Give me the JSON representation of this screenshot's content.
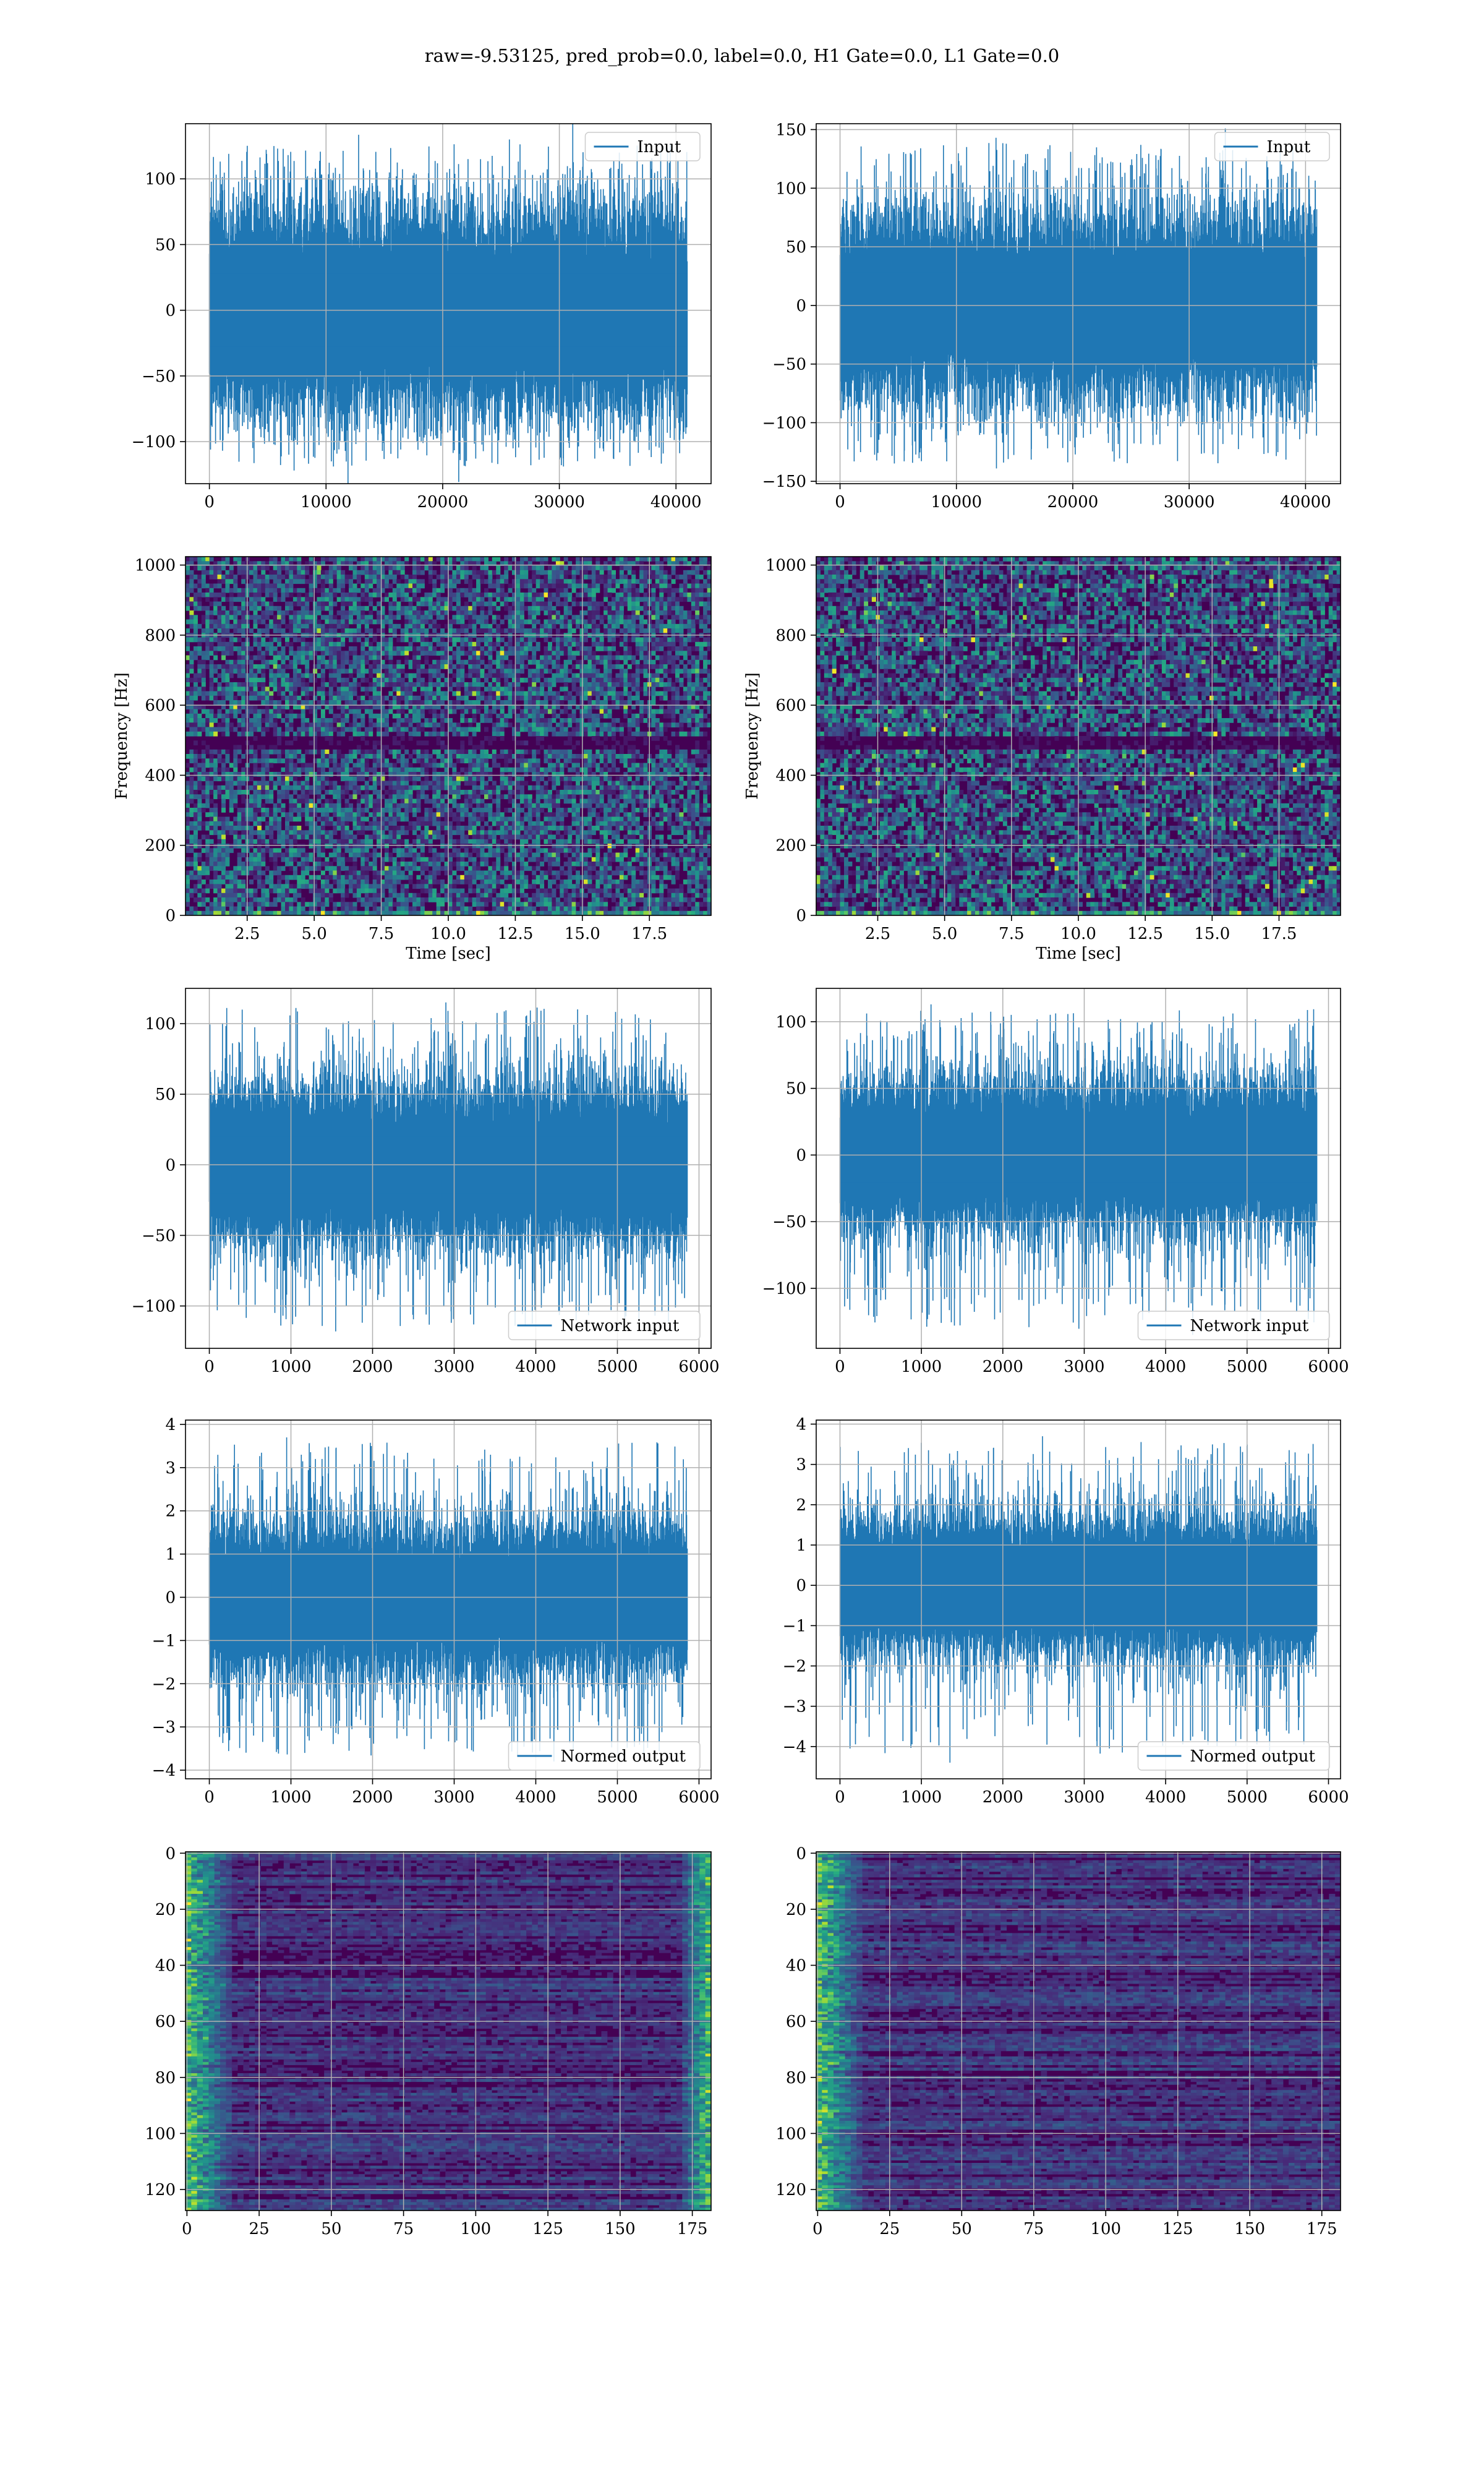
{
  "figure": {
    "suptitle": "raw=-9.53125, pred_prob=0.0, label=0.0, H1 Gate=0.0, L1 Gate=0.0",
    "colors": {
      "line": "#1f77b4",
      "viridis_low": "#440154",
      "viridis_mid": "#21918c",
      "viridis_high": "#fde725",
      "grid": "#b0b0b0"
    }
  },
  "chart_data": [
    {
      "id": "input-h1",
      "type": "line",
      "row": 0,
      "col": 0,
      "series": [
        {
          "name": "Input",
          "envelope": {
            "n": 40960,
            "lo_typ": -62,
            "hi_typ": 62,
            "peak_hi": 130,
            "peak_lo": -122,
            "end_x": 40960
          }
        }
      ],
      "xlim": [
        -2048,
        43008
      ],
      "ylim": [
        -132,
        142
      ],
      "xticks": [
        0,
        10000,
        20000,
        30000,
        40000
      ],
      "yticks": [
        -100,
        -50,
        0,
        50,
        100
      ],
      "legend": "top-right",
      "grid": true,
      "xlabel": "",
      "ylabel": ""
    },
    {
      "id": "input-l1",
      "type": "line",
      "row": 0,
      "col": 1,
      "series": [
        {
          "name": "Input",
          "envelope": {
            "n": 40960,
            "lo_typ": -62,
            "hi_typ": 62,
            "peak_hi": 143,
            "peak_lo": -139,
            "end_x": 40960
          }
        }
      ],
      "xlim": [
        -2048,
        43008
      ],
      "ylim": [
        -152,
        155
      ],
      "xticks": [
        0,
        10000,
        20000,
        30000,
        40000
      ],
      "yticks": [
        -150,
        -100,
        -50,
        0,
        50,
        100,
        150
      ],
      "legend": "top-right",
      "grid": true,
      "xlabel": "",
      "ylabel": ""
    },
    {
      "id": "spec-h1",
      "type": "heatmap",
      "row": 1,
      "col": 0,
      "xlim": [
        0.2,
        19.8
      ],
      "ylim": [
        0,
        1024
      ],
      "xticks": [
        2.5,
        5.0,
        7.5,
        10.0,
        12.5,
        15.0,
        17.5
      ],
      "xtick_labels": [
        "2.5",
        "5.0",
        "7.5",
        "10.0",
        "12.5",
        "15.0",
        "17.5"
      ],
      "yticks": [
        0,
        200,
        400,
        600,
        800,
        1000
      ],
      "xlabel": "Time [sec]",
      "ylabel": "Frequency [Hz]",
      "colormap": "viridis",
      "dark_band_hz": 500,
      "grid": true
    },
    {
      "id": "spec-l1",
      "type": "heatmap",
      "row": 1,
      "col": 1,
      "xlim": [
        0.2,
        19.8
      ],
      "ylim": [
        0,
        1024
      ],
      "xticks": [
        2.5,
        5.0,
        7.5,
        10.0,
        12.5,
        15.0,
        17.5
      ],
      "xtick_labels": [
        "2.5",
        "5.0",
        "7.5",
        "10.0",
        "12.5",
        "15.0",
        "17.5"
      ],
      "yticks": [
        0,
        200,
        400,
        600,
        800,
        1000
      ],
      "xlabel": "Time [sec]",
      "ylabel": "Frequency [Hz]",
      "colormap": "viridis",
      "dark_band_hz": 500,
      "grid": true
    },
    {
      "id": "netin-h1",
      "type": "line",
      "row": 2,
      "col": 0,
      "series": [
        {
          "name": "Network input",
          "envelope": {
            "n": 5856,
            "lo_typ": -45,
            "hi_typ": 45,
            "peak_hi": 115,
            "peak_lo": -118,
            "end_x": 5856
          }
        }
      ],
      "xlim": [
        -292,
        6148
      ],
      "ylim": [
        -130,
        125
      ],
      "xticks": [
        0,
        1000,
        2000,
        3000,
        4000,
        5000,
        6000
      ],
      "yticks": [
        -100,
        -50,
        0,
        50,
        100
      ],
      "legend": "bottom-right",
      "grid": true,
      "xlabel": "",
      "ylabel": ""
    },
    {
      "id": "netin-l1",
      "type": "line",
      "row": 2,
      "col": 1,
      "series": [
        {
          "name": "Network input",
          "envelope": {
            "n": 5856,
            "lo_typ": -45,
            "hi_typ": 45,
            "peak_hi": 113,
            "peak_lo": -135,
            "end_x": 5856
          }
        }
      ],
      "xlim": [
        -292,
        6148
      ],
      "ylim": [
        -145,
        125
      ],
      "xticks": [
        0,
        1000,
        2000,
        3000,
        4000,
        5000,
        6000
      ],
      "yticks": [
        -100,
        -50,
        0,
        50,
        100
      ],
      "legend": "bottom-right",
      "grid": true,
      "xlabel": "",
      "ylabel": ""
    },
    {
      "id": "normed-h1",
      "type": "line",
      "row": 3,
      "col": 0,
      "series": [
        {
          "name": "Normed output",
          "envelope": {
            "n": 5856,
            "lo_typ": -1.4,
            "hi_typ": 1.4,
            "peak_hi": 3.7,
            "peak_lo": -3.8,
            "end_x": 5856
          }
        }
      ],
      "xlim": [
        -292,
        6148
      ],
      "ylim": [
        -4.2,
        4.1
      ],
      "xticks": [
        0,
        1000,
        2000,
        3000,
        4000,
        5000,
        6000
      ],
      "yticks": [
        -4,
        -3,
        -2,
        -1,
        0,
        1,
        2,
        3,
        4
      ],
      "legend": "bottom-right",
      "grid": true,
      "xlabel": "",
      "ylabel": ""
    },
    {
      "id": "normed-l1",
      "type": "line",
      "row": 3,
      "col": 1,
      "series": [
        {
          "name": "Normed output",
          "envelope": {
            "n": 5856,
            "lo_typ": -1.4,
            "hi_typ": 1.4,
            "peak_hi": 3.7,
            "peak_lo": -4.4,
            "end_x": 5856
          }
        }
      ],
      "xlim": [
        -292,
        6148
      ],
      "ylim": [
        -4.8,
        4.1
      ],
      "xticks": [
        0,
        1000,
        2000,
        3000,
        4000,
        5000,
        6000
      ],
      "yticks": [
        -4,
        -3,
        -2,
        -1,
        0,
        1,
        2,
        3,
        4
      ],
      "legend": "bottom-right",
      "grid": true,
      "xlabel": "",
      "ylabel": ""
    },
    {
      "id": "emb-h1",
      "type": "heatmap",
      "row": 4,
      "col": 0,
      "xlim": [
        -0.5,
        181.5
      ],
      "ylim_inverted": [
        127.5,
        -0.5
      ],
      "xticks": [
        0,
        25,
        50,
        75,
        100,
        125,
        150,
        175
      ],
      "yticks": [
        0,
        20,
        40,
        60,
        80,
        100,
        120
      ],
      "rows": 128,
      "cols": 182,
      "colormap": "viridis",
      "bright_edges": [
        "left",
        "right"
      ],
      "grid": true,
      "xlabel": "",
      "ylabel": ""
    },
    {
      "id": "emb-l1",
      "type": "heatmap",
      "row": 4,
      "col": 1,
      "xlim": [
        -0.5,
        181.5
      ],
      "ylim_inverted": [
        127.5,
        -0.5
      ],
      "xticks": [
        0,
        25,
        50,
        75,
        100,
        125,
        150,
        175
      ],
      "yticks": [
        0,
        20,
        40,
        60,
        80,
        100,
        120
      ],
      "rows": 128,
      "cols": 182,
      "colormap": "viridis",
      "bright_edges": [
        "left"
      ],
      "grid": true,
      "xlabel": "",
      "ylabel": ""
    }
  ]
}
